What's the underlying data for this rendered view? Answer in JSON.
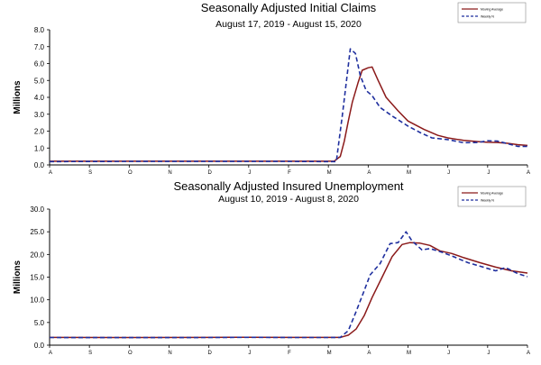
{
  "chart_data": [
    {
      "type": "line",
      "title": "Seasonally Adjusted Initial Claims",
      "subtitle": "August 17, 2019 - August 15, 2020",
      "ylabel": "Millions",
      "ylim": [
        0,
        8
      ],
      "yticks": [
        "0.0",
        "1.0",
        "2.0",
        "3.0",
        "4.0",
        "5.0",
        "6.0",
        "7.0",
        "8.0"
      ],
      "xticks": [
        "A",
        "S",
        "O",
        "N",
        "D",
        "J",
        "F",
        "M",
        "A",
        "M",
        "J",
        "J",
        "A"
      ],
      "grid": false,
      "legend_position": "top-right",
      "series": [
        {
          "name": "Moving Average",
          "color": "#8b1a1a",
          "style": "solid",
          "points": [
            [
              0,
              0.22
            ],
            [
              2,
              0.22
            ],
            [
              4,
              0.22
            ],
            [
              6,
              0.22
            ],
            [
              7,
              0.22
            ],
            [
              7.15,
              0.23
            ],
            [
              7.3,
              0.5
            ],
            [
              7.4,
              1.4
            ],
            [
              7.5,
              2.6
            ],
            [
              7.6,
              3.7
            ],
            [
              7.75,
              4.9
            ],
            [
              7.85,
              5.6
            ],
            [
              8.0,
              5.75
            ],
            [
              8.1,
              5.8
            ],
            [
              8.25,
              5.0
            ],
            [
              8.45,
              4.0
            ],
            [
              8.75,
              3.2
            ],
            [
              9.0,
              2.6
            ],
            [
              9.4,
              2.1
            ],
            [
              9.75,
              1.75
            ],
            [
              10.0,
              1.6
            ],
            [
              10.4,
              1.45
            ],
            [
              10.75,
              1.38
            ],
            [
              11.0,
              1.34
            ],
            [
              11.25,
              1.33
            ],
            [
              11.5,
              1.28
            ],
            [
              11.75,
              1.2
            ],
            [
              12,
              1.15
            ]
          ]
        },
        {
          "name": "Weekly N",
          "color": "#1f2f9e",
          "style": "dashed",
          "points": [
            [
              0,
              0.2
            ],
            [
              2,
              0.21
            ],
            [
              4,
              0.21
            ],
            [
              6,
              0.21
            ],
            [
              7,
              0.2
            ],
            [
              7.2,
              0.2
            ],
            [
              7.35,
              2.9
            ],
            [
              7.55,
              6.87
            ],
            [
              7.68,
              6.6
            ],
            [
              7.8,
              5.3
            ],
            [
              7.95,
              4.4
            ],
            [
              8.1,
              4.1
            ],
            [
              8.3,
              3.4
            ],
            [
              8.6,
              2.9
            ],
            [
              9.0,
              2.3
            ],
            [
              9.3,
              1.92
            ],
            [
              9.6,
              1.6
            ],
            [
              10.0,
              1.5
            ],
            [
              10.4,
              1.31
            ],
            [
              10.75,
              1.33
            ],
            [
              11.0,
              1.43
            ],
            [
              11.25,
              1.41
            ],
            [
              11.5,
              1.26
            ],
            [
              11.75,
              1.1
            ],
            [
              12,
              1.1
            ]
          ]
        }
      ]
    },
    {
      "type": "line",
      "title": "Seasonally Adjusted Insured Unemployment",
      "subtitle": "August 10, 2019 - August 8, 2020",
      "ylabel": "Millions",
      "ylim": [
        0,
        30
      ],
      "yticks": [
        "0.0",
        "5.0",
        "10.0",
        "15.0",
        "20.0",
        "25.0",
        "30.0"
      ],
      "xticks": [
        "A",
        "S",
        "O",
        "N",
        "D",
        "J",
        "F",
        "M",
        "A",
        "M",
        "J",
        "J",
        "A"
      ],
      "grid": false,
      "legend_position": "top-right",
      "series": [
        {
          "name": "Moving Average",
          "color": "#8b1a1a",
          "style": "solid",
          "points": [
            [
              0,
              1.7
            ],
            [
              2,
              1.68
            ],
            [
              4,
              1.7
            ],
            [
              5,
              1.75
            ],
            [
              6,
              1.7
            ],
            [
              7,
              1.7
            ],
            [
              7.3,
              1.7
            ],
            [
              7.5,
              2.2
            ],
            [
              7.7,
              3.6
            ],
            [
              7.9,
              6.5
            ],
            [
              8.1,
              10.5
            ],
            [
              8.35,
              15
            ],
            [
              8.6,
              19.5
            ],
            [
              8.85,
              22.2
            ],
            [
              9.05,
              22.6
            ],
            [
              9.3,
              22.5
            ],
            [
              9.55,
              22
            ],
            [
              9.8,
              20.8
            ],
            [
              10.1,
              20.2
            ],
            [
              10.4,
              19.3
            ],
            [
              10.8,
              18.2
            ],
            [
              11.2,
              17.2
            ],
            [
              11.6,
              16.4
            ],
            [
              12,
              15.9
            ]
          ]
        },
        {
          "name": "Weekly N",
          "color": "#1f2f9e",
          "style": "dashed",
          "points": [
            [
              0,
              1.68
            ],
            [
              2,
              1.66
            ],
            [
              4,
              1.68
            ],
            [
              5,
              1.72
            ],
            [
              6,
              1.68
            ],
            [
              7,
              1.68
            ],
            [
              7.3,
              1.7
            ],
            [
              7.5,
              3.2
            ],
            [
              7.7,
              7.5
            ],
            [
              7.9,
              12
            ],
            [
              8.05,
              15.5
            ],
            [
              8.3,
              18
            ],
            [
              8.55,
              22.4
            ],
            [
              8.75,
              22.6
            ],
            [
              8.95,
              25
            ],
            [
              9.1,
              23
            ],
            [
              9.35,
              21
            ],
            [
              9.55,
              21.3
            ],
            [
              9.85,
              20.5
            ],
            [
              10.15,
              19.5
            ],
            [
              10.5,
              18.2
            ],
            [
              10.85,
              17.3
            ],
            [
              11.2,
              16.4
            ],
            [
              11.45,
              17.1
            ],
            [
              11.75,
              15.8
            ],
            [
              12,
              15.1
            ]
          ]
        }
      ]
    }
  ]
}
